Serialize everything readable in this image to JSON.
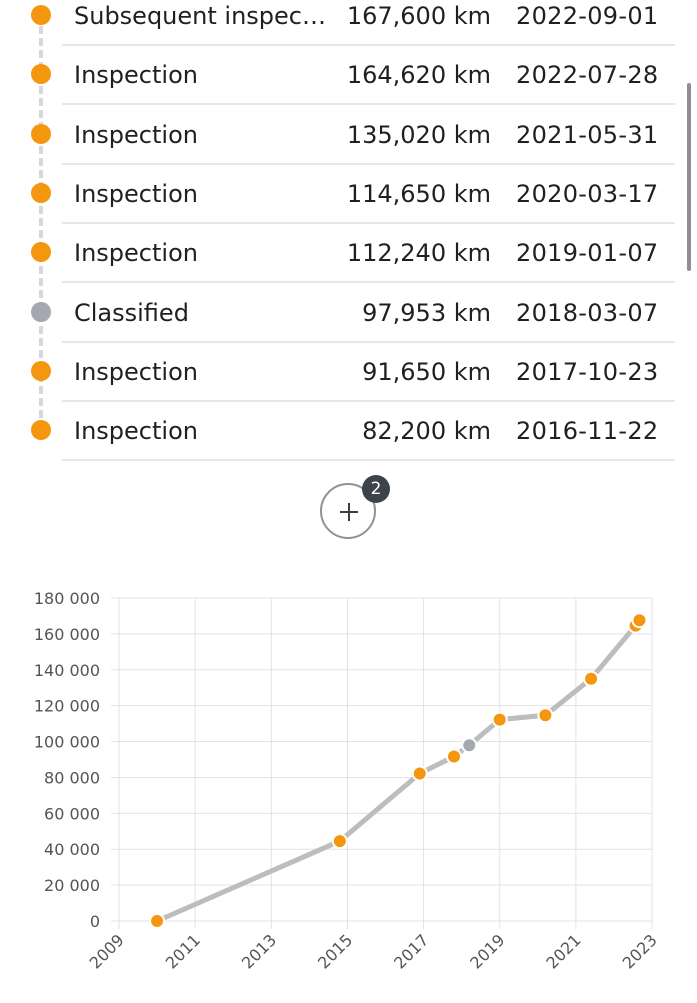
{
  "history": {
    "rows": [
      {
        "label": "Subsequent inspecti...",
        "km": "167,600 km",
        "date": "2022-09-01",
        "status": "orange"
      },
      {
        "label": "Inspection",
        "km": "164,620 km",
        "date": "2022-07-28",
        "status": "orange"
      },
      {
        "label": "Inspection",
        "km": "135,020 km",
        "date": "2021-05-31",
        "status": "orange"
      },
      {
        "label": "Inspection",
        "km": "114,650 km",
        "date": "2020-03-17",
        "status": "orange"
      },
      {
        "label": "Inspection",
        "km": "112,240 km",
        "date": "2019-01-07",
        "status": "orange"
      },
      {
        "label": "Classified",
        "km": "97,953 km",
        "date": "2018-03-07",
        "status": "gray"
      },
      {
        "label": "Inspection",
        "km": "91,650 km",
        "date": "2017-10-23",
        "status": "orange"
      },
      {
        "label": "Inspection",
        "km": "82,200 km",
        "date": "2016-11-22",
        "status": "orange"
      }
    ],
    "expand_button": {
      "icon": "plus-icon",
      "badge_count": "2"
    }
  },
  "colors": {
    "orange": "#f4970f",
    "gray": "#a5a8b0",
    "line": "#bdbdbd",
    "grid": "#e3e3e3"
  },
  "chart_data": {
    "type": "line",
    "title": "",
    "xlabel": "",
    "ylabel": "",
    "x_ticks": [
      "2009",
      "2011",
      "2013",
      "2015",
      "2017",
      "2019",
      "2021",
      "2023"
    ],
    "y_ticks": [
      "0",
      "20 000",
      "40 000",
      "60 000",
      "80 000",
      "100 000",
      "120 000",
      "140 000",
      "160 000",
      "180 000"
    ],
    "xlim": [
      2009,
      2023
    ],
    "ylim": [
      0,
      180000
    ],
    "grid": true,
    "series": [
      {
        "points": [
          {
            "x": 2010.0,
            "y": 0,
            "status": "orange"
          },
          {
            "x": 2014.8,
            "y": 44500,
            "status": "orange"
          },
          {
            "x": 2016.9,
            "y": 82200,
            "status": "orange"
          },
          {
            "x": 2017.8,
            "y": 91650,
            "status": "orange"
          },
          {
            "x": 2018.2,
            "y": 97953,
            "status": "gray"
          },
          {
            "x": 2019.0,
            "y": 112240,
            "status": "orange"
          },
          {
            "x": 2020.2,
            "y": 114650,
            "status": "orange"
          },
          {
            "x": 2021.4,
            "y": 135020,
            "status": "orange"
          },
          {
            "x": 2022.57,
            "y": 164620,
            "status": "orange"
          },
          {
            "x": 2022.67,
            "y": 167600,
            "status": "orange"
          }
        ]
      }
    ]
  }
}
